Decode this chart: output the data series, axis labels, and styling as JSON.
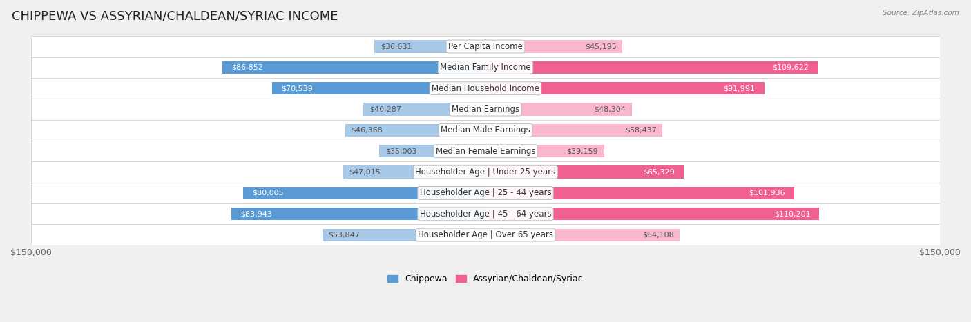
{
  "title": "CHIPPEWA VS ASSYRIAN/CHALDEAN/SYRIAC INCOME",
  "source": "Source: ZipAtlas.com",
  "categories": [
    "Per Capita Income",
    "Median Family Income",
    "Median Household Income",
    "Median Earnings",
    "Median Male Earnings",
    "Median Female Earnings",
    "Householder Age | Under 25 years",
    "Householder Age | 25 - 44 years",
    "Householder Age | 45 - 64 years",
    "Householder Age | Over 65 years"
  ],
  "chippewa_values": [
    36631,
    86852,
    70539,
    40287,
    46368,
    35003,
    47015,
    80005,
    83943,
    53847
  ],
  "assyrian_values": [
    45195,
    109622,
    91991,
    48304,
    58437,
    39159,
    65329,
    101936,
    110201,
    64108
  ],
  "chippewa_light_color": "#a8c8e8",
  "chippewa_dark_color": "#5b9bd5",
  "assyrian_light_color": "#f9b8cc",
  "assyrian_dark_color": "#f06090",
  "large_threshold": 65000,
  "max_value": 150000,
  "background_color": "#f0f0f0",
  "row_light_color": "#fafafa",
  "row_dark_color": "#eeeeee",
  "title_fontsize": 13,
  "tick_fontsize": 9,
  "cat_fontsize": 8.5,
  "value_fontsize": 8.0
}
